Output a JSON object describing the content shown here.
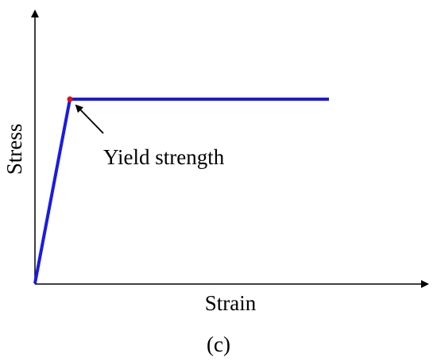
{
  "axes": {
    "x_label": "Strain",
    "y_label": "Stress"
  },
  "annotation": "Yield strength",
  "caption": "(c)"
}
